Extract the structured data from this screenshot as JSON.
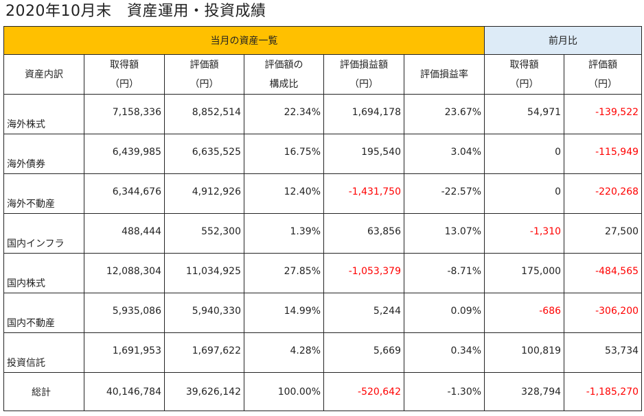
{
  "title": "2020年10月末　資産運用・投資成績",
  "header": {
    "main_label": "当月の資産一覧",
    "prev_label": "前月比"
  },
  "columns": [
    {
      "line1": "資産内訳",
      "line2": ""
    },
    {
      "line1": "取得額",
      "line2": "（円）"
    },
    {
      "line1": "評価額",
      "line2": "（円）"
    },
    {
      "line1": "評価額の",
      "line2": "構成比"
    },
    {
      "line1": "評価損益額",
      "line2": "（円）"
    },
    {
      "line1": "評価損益率",
      "line2": ""
    },
    {
      "line1": "取得額",
      "line2": "（円）"
    },
    {
      "line1": "評価額",
      "line2": "（円）"
    }
  ],
  "rows": [
    {
      "name": "海外株式",
      "cost": "7,158,336",
      "value": "8,852,514",
      "ratio": "22.34%",
      "pl": "1,694,178",
      "pl_rate": "23.67%",
      "d_cost": "54,971",
      "d_value": "-139,522"
    },
    {
      "name": "海外債券",
      "cost": "6,439,985",
      "value": "6,635,525",
      "ratio": "16.75%",
      "pl": "195,540",
      "pl_rate": "3.04%",
      "d_cost": "0",
      "d_value": "-115,949"
    },
    {
      "name": "海外不動産",
      "cost": "6,344,676",
      "value": "4,912,926",
      "ratio": "12.40%",
      "pl": "-1,431,750",
      "pl_rate": "-22.57%",
      "d_cost": "0",
      "d_value": "-220,268"
    },
    {
      "name": "国内インフラ",
      "cost": "488,444",
      "value": "552,300",
      "ratio": "1.39%",
      "pl": "63,856",
      "pl_rate": "13.07%",
      "d_cost": "-1,310",
      "d_value": "27,500"
    },
    {
      "name": "国内株式",
      "cost": "12,088,304",
      "value": "11,034,925",
      "ratio": "27.85%",
      "pl": "-1,053,379",
      "pl_rate": "-8.71%",
      "d_cost": "175,000",
      "d_value": "-484,565"
    },
    {
      "name": "国内不動産",
      "cost": "5,935,086",
      "value": "5,940,330",
      "ratio": "14.99%",
      "pl": "5,244",
      "pl_rate": "0.09%",
      "d_cost": "-686",
      "d_value": "-306,200"
    },
    {
      "name": "投資信託",
      "cost": "1,691,953",
      "value": "1,697,622",
      "ratio": "4.28%",
      "pl": "5,669",
      "pl_rate": "0.34%",
      "d_cost": "100,819",
      "d_value": "53,734"
    }
  ],
  "total": {
    "name": "総計",
    "cost": "40,146,784",
    "value": "39,626,142",
    "ratio": "100.00%",
    "pl": "-520,642",
    "pl_rate": "-1.30%",
    "d_cost": "328,794",
    "d_value": "-1,185,270"
  },
  "colors": {
    "negative": "#ff0000",
    "header_main": "#ffc000",
    "header_prev": "#ddebf7"
  },
  "red_cells": [
    "pl",
    "d_cost",
    "d_value"
  ]
}
